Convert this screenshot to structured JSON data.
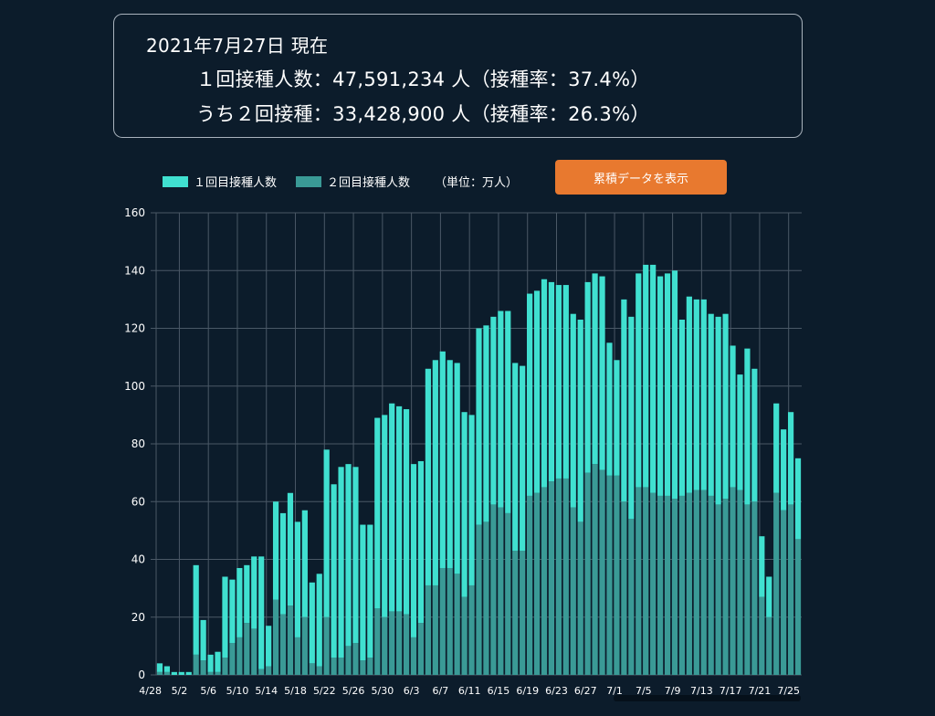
{
  "summary": {
    "date_line": "2021年7月27日 現在",
    "first_dose_line": "１回接種人数：47,591,234 人（接種率：37.4%）",
    "second_dose_line": "うち２回接種：33,428,900 人（接種率：26.3%）"
  },
  "legend": {
    "first_label": "１回目接種人数",
    "second_label": "２回目接種人数",
    "unit": "（単位：万人）"
  },
  "toggle_button_label": "累積データを表示",
  "colors": {
    "first": "#40e0d0",
    "second": "#3a9a96",
    "background": "#0c1c2b",
    "grid": "#4a5866",
    "button": "#e8792f"
  },
  "chart_data": {
    "type": "bar",
    "stacked": true,
    "unit": "万人",
    "x_tick_labels": [
      "4/28",
      "5/2",
      "5/6",
      "5/10",
      "5/14",
      "5/18",
      "5/22",
      "5/26",
      "5/30",
      "6/3",
      "6/7",
      "6/11",
      "6/15",
      "6/19",
      "6/23",
      "6/27",
      "7/1",
      "7/5",
      "7/9",
      "7/13",
      "7/17",
      "7/21",
      "7/25"
    ],
    "ylim": [
      0,
      160
    ],
    "y_ticks": [
      0,
      20,
      40,
      60,
      80,
      100,
      120,
      140,
      160
    ],
    "grid": true,
    "legend_position": "top-left",
    "series": [
      {
        "name": "２回目接種人数",
        "values": [
          1,
          1,
          0,
          0,
          0,
          7,
          5,
          1,
          1,
          6,
          11,
          13,
          18,
          16,
          2,
          3,
          26,
          21,
          24,
          13,
          20,
          4,
          3,
          20,
          6,
          6,
          10,
          11,
          5,
          6,
          23,
          20,
          22,
          22,
          21,
          13,
          18,
          31,
          31,
          37,
          37,
          35,
          27,
          31,
          52,
          53,
          59,
          58,
          56,
          43,
          43,
          62,
          63,
          65,
          67,
          68,
          68,
          58,
          53,
          70,
          73,
          71,
          69,
          69,
          60,
          54,
          65,
          65,
          63,
          62,
          62,
          61,
          62,
          63,
          64,
          64,
          62,
          59,
          61,
          65,
          64,
          59,
          60,
          27,
          20,
          63,
          57,
          59,
          47
        ]
      },
      {
        "name": "１回目接種人数",
        "values": [
          3,
          2,
          1,
          1,
          1,
          31,
          14,
          6,
          7,
          28,
          22,
          24,
          20,
          25,
          39,
          14,
          34,
          35,
          39,
          40,
          37,
          28,
          32,
          58,
          60,
          66,
          63,
          61,
          47,
          46,
          66,
          70,
          72,
          71,
          71,
          60,
          56,
          75,
          78,
          75,
          72,
          73,
          64,
          59,
          68,
          68,
          65,
          68,
          70,
          65,
          64,
          70,
          70,
          72,
          69,
          67,
          67,
          67,
          70,
          66,
          66,
          67,
          46,
          40,
          70,
          70,
          74,
          77,
          79,
          76,
          77,
          79,
          61,
          68,
          66,
          66,
          63,
          65,
          64,
          49,
          40,
          54,
          46,
          21,
          14,
          31,
          28,
          32,
          28
        ]
      }
    ]
  }
}
